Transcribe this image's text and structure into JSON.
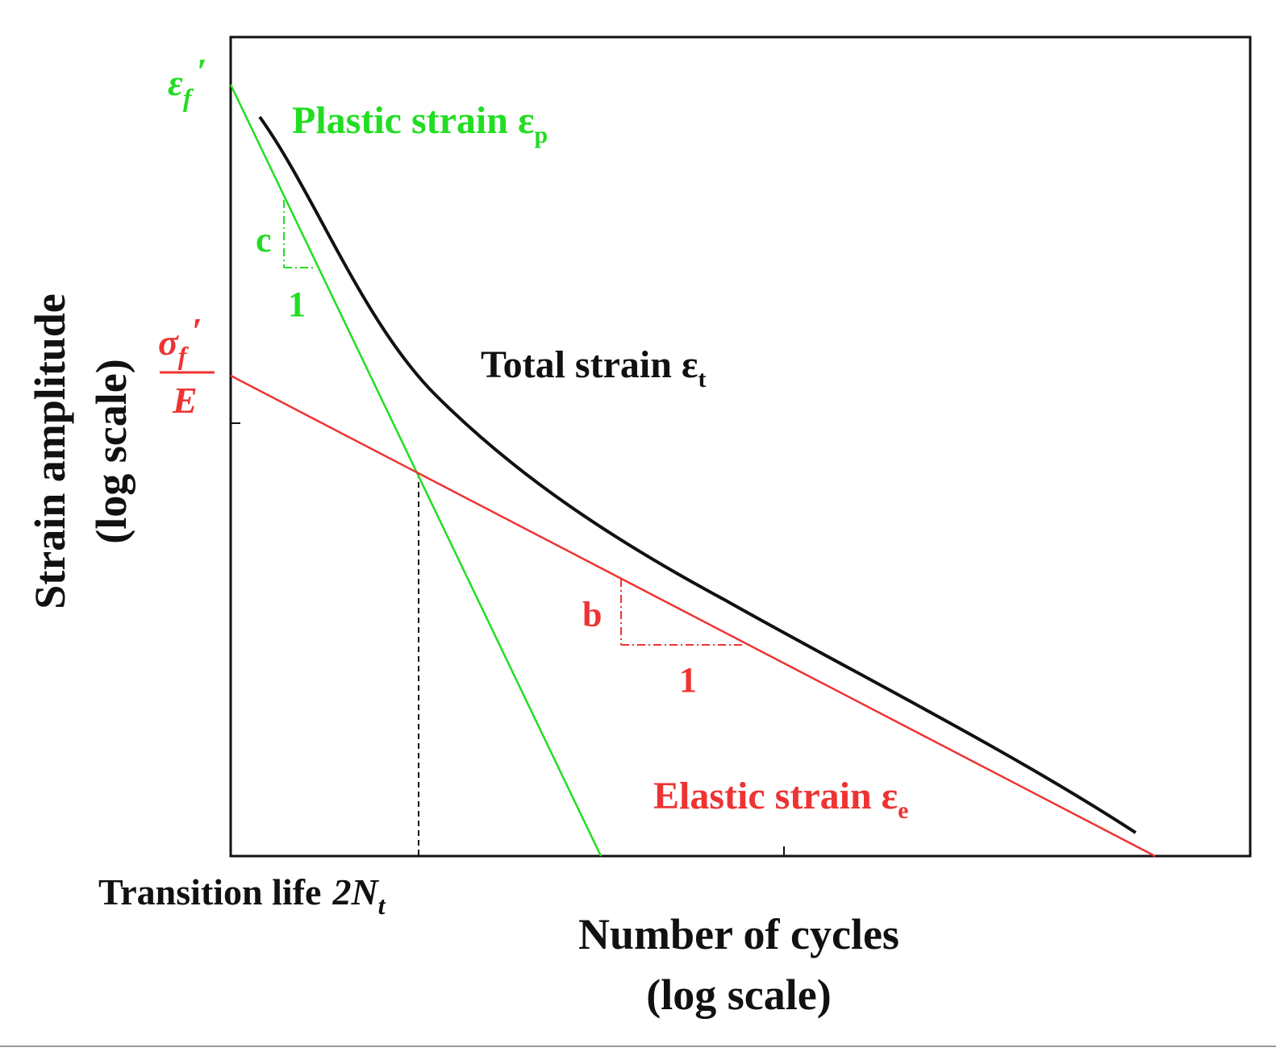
{
  "colors": {
    "plastic": "#22dd22",
    "elastic": "#ee3333",
    "total": "#111111",
    "frame": "#111111"
  },
  "diagram": {
    "y_axis_title_line1": "Strain amplitude",
    "y_axis_title_line2": "(log scale)",
    "x_axis_title_line1": "Number of cycles",
    "x_axis_title_line2": "(log scale)",
    "plastic_label": "Plastic strain ε",
    "plastic_sub": "p",
    "elastic_label": "Elastic strain ε",
    "elastic_sub": "e",
    "total_label": "Total strain ε",
    "total_sub": "t",
    "ef_symbol": "ε",
    "ef_sub": "f",
    "ef_prime": "′",
    "sf_symbol": "σ",
    "sf_sub": "f",
    "sf_prime": "′",
    "sf_denominator": "E",
    "transition_label": "Transition life",
    "transition_symbol": "2N",
    "transition_sub": "t",
    "slope_c": "c",
    "slope_c_run": "1",
    "slope_b": "b",
    "slope_b_run": "1"
  }
}
